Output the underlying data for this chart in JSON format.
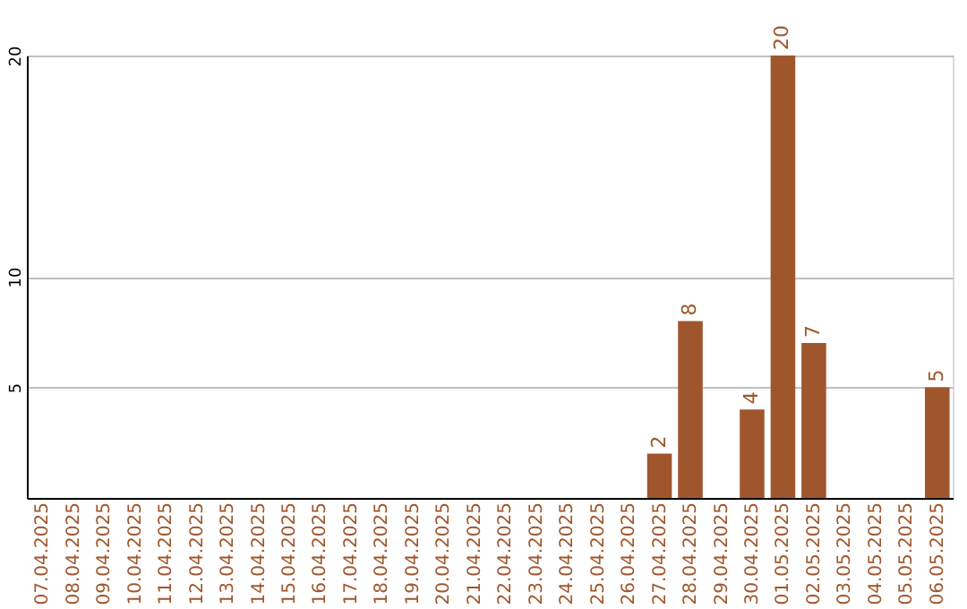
{
  "chart_data": {
    "type": "bar",
    "categories": [
      "07.04.2025",
      "08.04.2025",
      "09.04.2025",
      "10.04.2025",
      "11.04.2025",
      "12.04.2025",
      "13.04.2025",
      "14.04.2025",
      "15.04.2025",
      "16.04.2025",
      "17.04.2025",
      "18.04.2025",
      "19.04.2025",
      "20.04.2025",
      "21.04.2025",
      "22.04.2025",
      "23.04.2025",
      "24.04.2025",
      "25.04.2025",
      "26.04.2025",
      "27.04.2025",
      "28.04.2025",
      "29.04.2025",
      "30.04.2025",
      "01.05.2025",
      "02.05.2025",
      "03.05.2025",
      "04.05.2025",
      "05.05.2025",
      "06.05.2025"
    ],
    "values": [
      0,
      0,
      0,
      0,
      0,
      0,
      0,
      0,
      0,
      0,
      0,
      0,
      0,
      0,
      0,
      0,
      0,
      0,
      0,
      0,
      2,
      8,
      0,
      4,
      20,
      7,
      0,
      0,
      0,
      5
    ],
    "value_labels": [
      null,
      null,
      null,
      null,
      null,
      null,
      null,
      null,
      null,
      null,
      null,
      null,
      null,
      null,
      null,
      null,
      null,
      null,
      null,
      null,
      "2",
      "8",
      null,
      "4",
      "20",
      "7",
      null,
      null,
      null,
      "5"
    ],
    "color": "#a0562c",
    "ylim": [
      0,
      20
    ],
    "yticks": [
      5,
      10,
      20
    ],
    "grid": "y"
  }
}
